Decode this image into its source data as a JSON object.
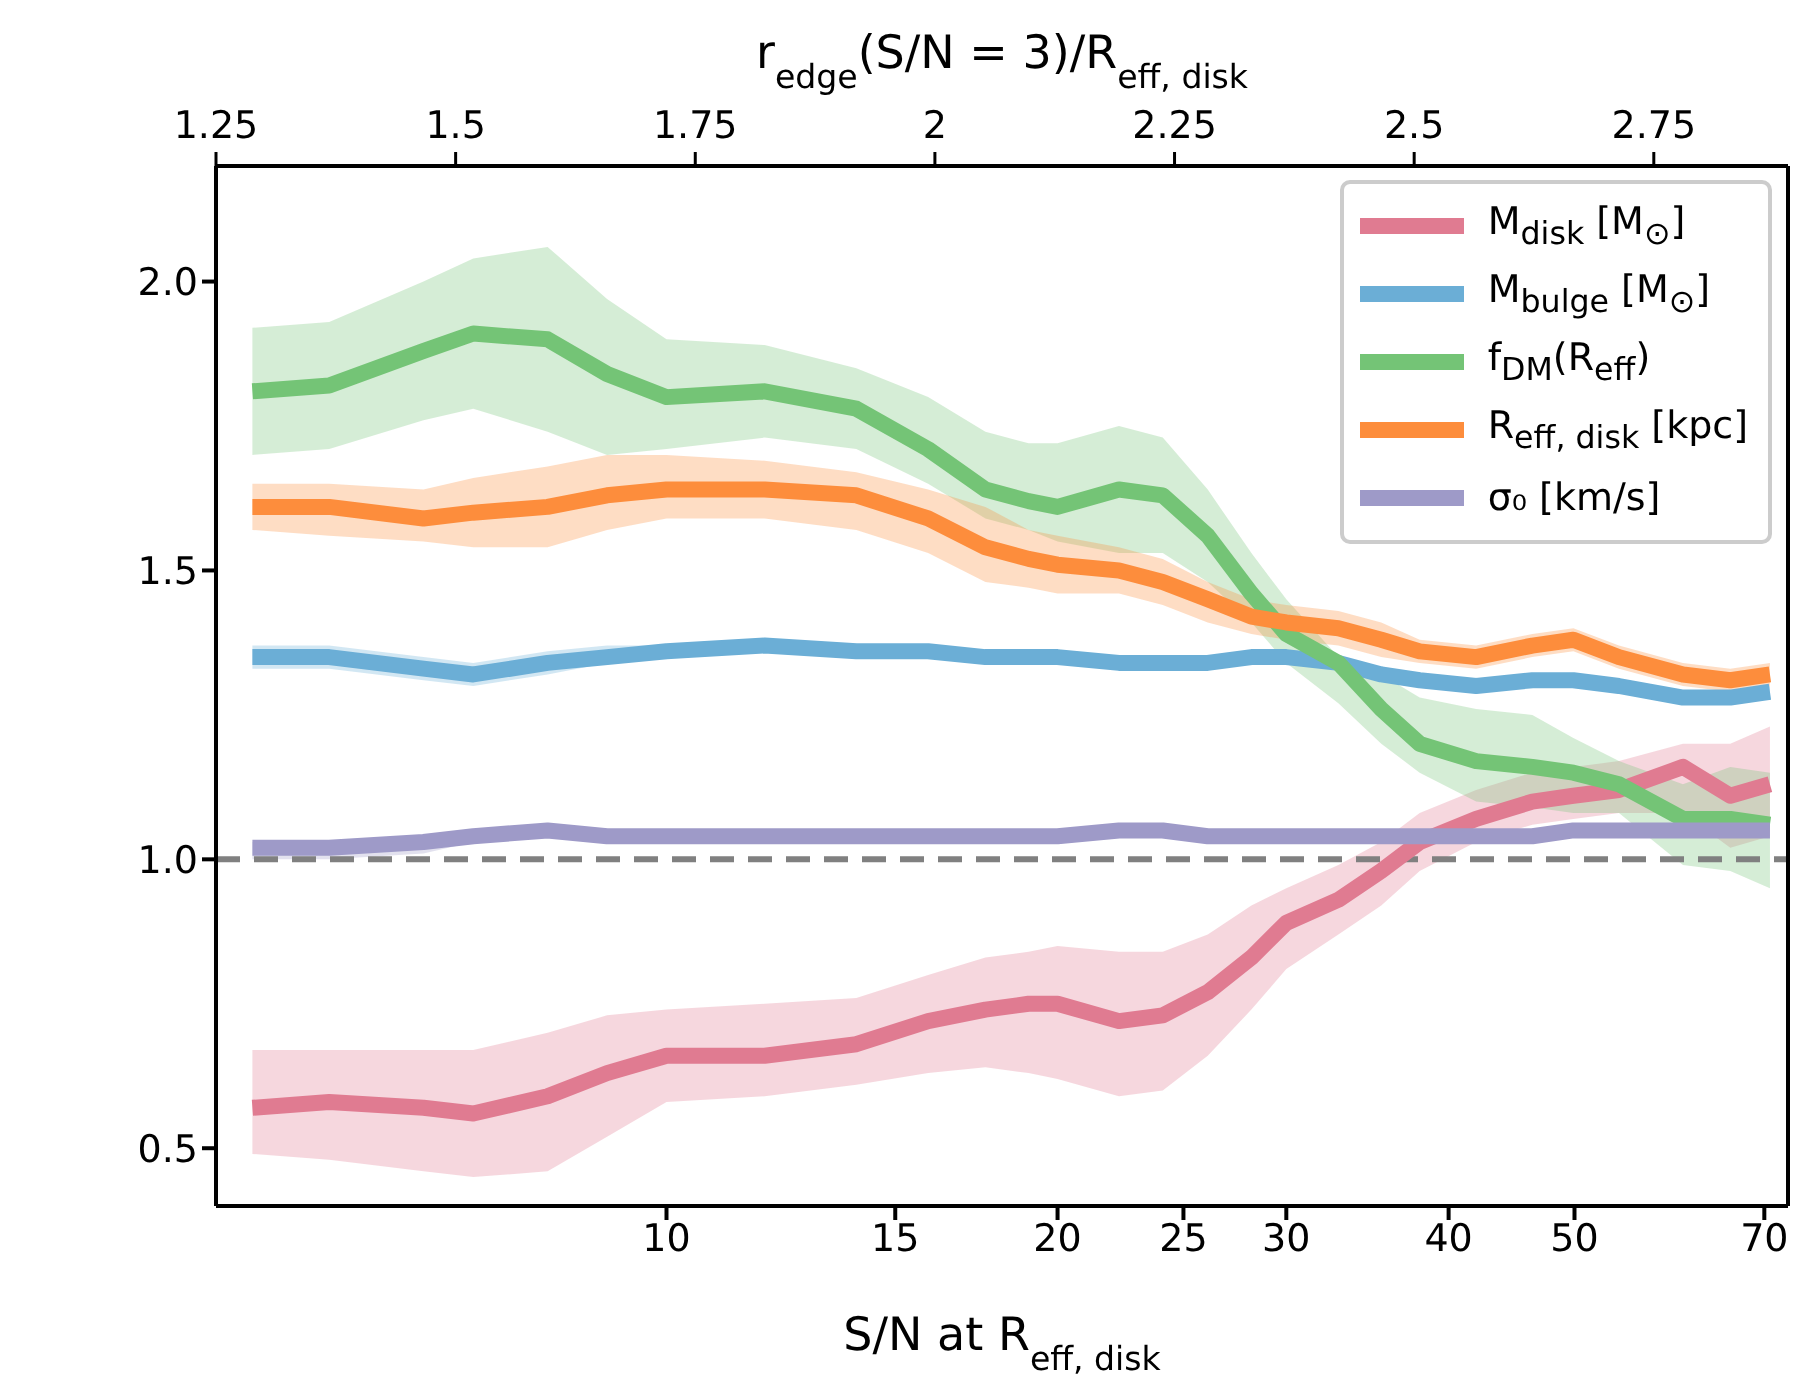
{
  "chart_data": {
    "type": "line",
    "xlabel": "S/N at R$_{eff, disk}$",
    "x2label": "r$_{edge}$(S/N = 3)/R$_{eff, disk}$",
    "x": [
      4.8,
      5.5,
      6.5,
      7.1,
      8.1,
      9.0,
      10.0,
      11.9,
      14.0,
      15.9,
      17.6,
      19.0,
      20.0,
      22.3,
      24.1,
      26.1,
      28.2,
      30.0,
      32.9,
      35.5,
      38.0,
      42.0,
      46.4,
      49.9,
      54.1,
      60.6,
      65.9,
      70.7
    ],
    "xlim": [
      4.5,
      73
    ],
    "log": "x",
    "xticks": [
      10,
      15,
      20,
      25,
      30,
      40,
      50,
      70
    ],
    "x2lim": [
      1.25,
      2.89
    ],
    "x2ticks": [
      1.25,
      1.5,
      1.75,
      2,
      2.25,
      2.5,
      2.75
    ],
    "ylim": [
      0.4,
      2.2
    ],
    "yticks": [
      0.5,
      {
        "value": 1,
        "label": "1.0"
      },
      1.5,
      {
        "value": 2,
        "label": "2.0"
      }
    ],
    "legend": "top right",
    "series": [
      {
        "name": "M$_{disk}$ [M$_{⊙}$]",
        "color": "#e07b91",
        "values": [
          0.57,
          0.58,
          0.57,
          0.56,
          0.59,
          0.63,
          0.66,
          0.66,
          0.68,
          0.72,
          0.74,
          0.75,
          0.75,
          0.72,
          0.73,
          0.77,
          0.83,
          0.89,
          0.93,
          0.98,
          1.03,
          1.07,
          1.1,
          1.11,
          1.12,
          1.16,
          1.11,
          1.13
        ],
        "lower": [
          0.49,
          0.48,
          0.46,
          0.45,
          0.46,
          0.52,
          0.58,
          0.59,
          0.61,
          0.63,
          0.64,
          0.63,
          0.62,
          0.59,
          0.6,
          0.66,
          0.74,
          0.81,
          0.87,
          0.92,
          0.98,
          1.03,
          1.06,
          1.07,
          1.08,
          1.08,
          1.02,
          1.04
        ],
        "upper": [
          0.67,
          0.67,
          0.67,
          0.67,
          0.7,
          0.73,
          0.74,
          0.75,
          0.76,
          0.8,
          0.83,
          0.84,
          0.85,
          0.84,
          0.84,
          0.87,
          0.92,
          0.95,
          0.99,
          1.03,
          1.08,
          1.12,
          1.15,
          1.16,
          1.17,
          1.2,
          1.2,
          1.23
        ]
      },
      {
        "name": "M$_{bulge}$ [M$_{⊙}$]",
        "color": "#6baed6",
        "values": [
          1.35,
          1.35,
          1.33,
          1.32,
          1.34,
          1.35,
          1.36,
          1.37,
          1.36,
          1.36,
          1.35,
          1.35,
          1.35,
          1.34,
          1.34,
          1.34,
          1.35,
          1.35,
          1.34,
          1.32,
          1.31,
          1.3,
          1.31,
          1.31,
          1.3,
          1.28,
          1.28,
          1.29
        ],
        "lower": [
          1.33,
          1.33,
          1.31,
          1.3,
          1.32,
          1.34,
          1.35,
          1.36,
          1.35,
          1.35,
          1.34,
          1.34,
          1.34,
          1.33,
          1.33,
          1.33,
          1.34,
          1.34,
          1.33,
          1.31,
          1.3,
          1.29,
          1.3,
          1.3,
          1.29,
          1.27,
          1.27,
          1.28
        ],
        "upper": [
          1.37,
          1.37,
          1.35,
          1.34,
          1.36,
          1.37,
          1.37,
          1.38,
          1.37,
          1.37,
          1.36,
          1.36,
          1.36,
          1.35,
          1.35,
          1.35,
          1.36,
          1.36,
          1.35,
          1.33,
          1.32,
          1.31,
          1.32,
          1.32,
          1.31,
          1.29,
          1.29,
          1.3
        ]
      },
      {
        "name": "f$_{DM}$(R$_{eff}$)",
        "color": "#74c476",
        "values": [
          1.81,
          1.82,
          1.88,
          1.91,
          1.9,
          1.84,
          1.8,
          1.81,
          1.78,
          1.71,
          1.64,
          1.62,
          1.61,
          1.64,
          1.63,
          1.56,
          1.46,
          1.39,
          1.34,
          1.26,
          1.2,
          1.17,
          1.16,
          1.15,
          1.13,
          1.07,
          1.07,
          1.06
        ],
        "lower": [
          1.7,
          1.71,
          1.76,
          1.78,
          1.74,
          1.7,
          1.71,
          1.73,
          1.71,
          1.65,
          1.59,
          1.57,
          1.55,
          1.53,
          1.53,
          1.48,
          1.41,
          1.34,
          1.27,
          1.2,
          1.15,
          1.1,
          1.09,
          1.08,
          1.08,
          0.99,
          0.98,
          0.95
        ],
        "upper": [
          1.92,
          1.93,
          2.0,
          2.04,
          2.06,
          1.97,
          1.9,
          1.89,
          1.85,
          1.8,
          1.74,
          1.72,
          1.72,
          1.75,
          1.73,
          1.64,
          1.53,
          1.45,
          1.35,
          1.32,
          1.28,
          1.26,
          1.25,
          1.21,
          1.17,
          1.13,
          1.16,
          1.15
        ]
      },
      {
        "name": "R$_{eff, disk}$ [kpc]",
        "color": "#fd8d3c",
        "values": [
          1.61,
          1.61,
          1.59,
          1.6,
          1.61,
          1.63,
          1.64,
          1.64,
          1.63,
          1.59,
          1.54,
          1.52,
          1.51,
          1.5,
          1.48,
          1.45,
          1.42,
          1.41,
          1.4,
          1.38,
          1.36,
          1.35,
          1.37,
          1.38,
          1.35,
          1.32,
          1.31,
          1.32
        ],
        "lower": [
          1.57,
          1.56,
          1.55,
          1.54,
          1.54,
          1.57,
          1.59,
          1.59,
          1.57,
          1.53,
          1.48,
          1.47,
          1.46,
          1.46,
          1.44,
          1.41,
          1.39,
          1.38,
          1.37,
          1.35,
          1.34,
          1.33,
          1.35,
          1.36,
          1.33,
          1.3,
          1.29,
          1.3
        ],
        "upper": [
          1.65,
          1.65,
          1.64,
          1.66,
          1.68,
          1.7,
          1.7,
          1.69,
          1.67,
          1.64,
          1.61,
          1.57,
          1.56,
          1.54,
          1.52,
          1.48,
          1.45,
          1.44,
          1.43,
          1.41,
          1.38,
          1.37,
          1.39,
          1.4,
          1.37,
          1.34,
          1.33,
          1.34
        ]
      },
      {
        "name": "σ₀ [km/s]",
        "color": "#9e9ac8",
        "values": [
          1.02,
          1.02,
          1.03,
          1.04,
          1.05,
          1.04,
          1.04,
          1.04,
          1.04,
          1.04,
          1.04,
          1.04,
          1.04,
          1.05,
          1.05,
          1.04,
          1.04,
          1.04,
          1.04,
          1.04,
          1.04,
          1.04,
          1.04,
          1.05,
          1.05,
          1.05,
          1.05,
          1.05
        ],
        "lower": [
          1.0,
          1.0,
          1.01,
          1.03,
          1.04,
          1.03,
          1.03,
          1.03,
          1.03,
          1.03,
          1.03,
          1.03,
          1.03,
          1.04,
          1.04,
          1.03,
          1.03,
          1.03,
          1.03,
          1.03,
          1.03,
          1.03,
          1.03,
          1.04,
          1.04,
          1.04,
          1.04,
          1.04
        ],
        "upper": [
          1.03,
          1.03,
          1.04,
          1.05,
          1.06,
          1.05,
          1.05,
          1.05,
          1.05,
          1.05,
          1.05,
          1.05,
          1.05,
          1.06,
          1.06,
          1.05,
          1.05,
          1.05,
          1.05,
          1.05,
          1.05,
          1.05,
          1.05,
          1.06,
          1.06,
          1.06,
          1.06,
          1.06
        ]
      }
    ],
    "ref_lines": [
      {
        "axis": "y",
        "value": 1,
        "color": "#808080",
        "line_style": "dashed"
      }
    ]
  }
}
